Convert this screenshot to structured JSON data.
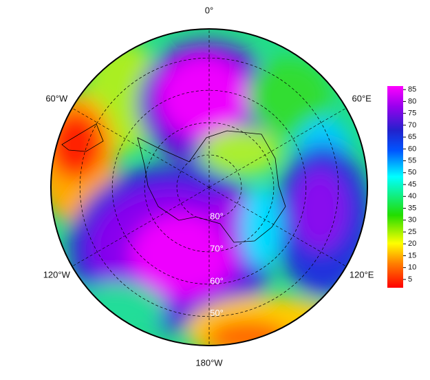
{
  "map": {
    "rlim": [
      90,
      41
    ],
    "meridians": [
      {
        "value": 0,
        "label": "0°"
      },
      {
        "value": 60,
        "label": "60°E"
      },
      {
        "value": 120,
        "label": "120°E"
      },
      {
        "value": 180,
        "label": "180°W"
      },
      {
        "value": -120,
        "label": "120°W"
      },
      {
        "value": -60,
        "label": "60°W"
      }
    ],
    "parallels": [
      {
        "value": 80,
        "label": "80°"
      },
      {
        "value": 70,
        "label": "70°"
      },
      {
        "value": 60,
        "label": "60°"
      },
      {
        "value": 50,
        "label": "50°"
      }
    ]
  },
  "colorbar": {
    "lim": [
      1.5,
      86.5
    ],
    "ticks": [
      5,
      10,
      15,
      20,
      25,
      30,
      35,
      40,
      45,
      50,
      55,
      60,
      65,
      70,
      75,
      80,
      85
    ]
  }
}
